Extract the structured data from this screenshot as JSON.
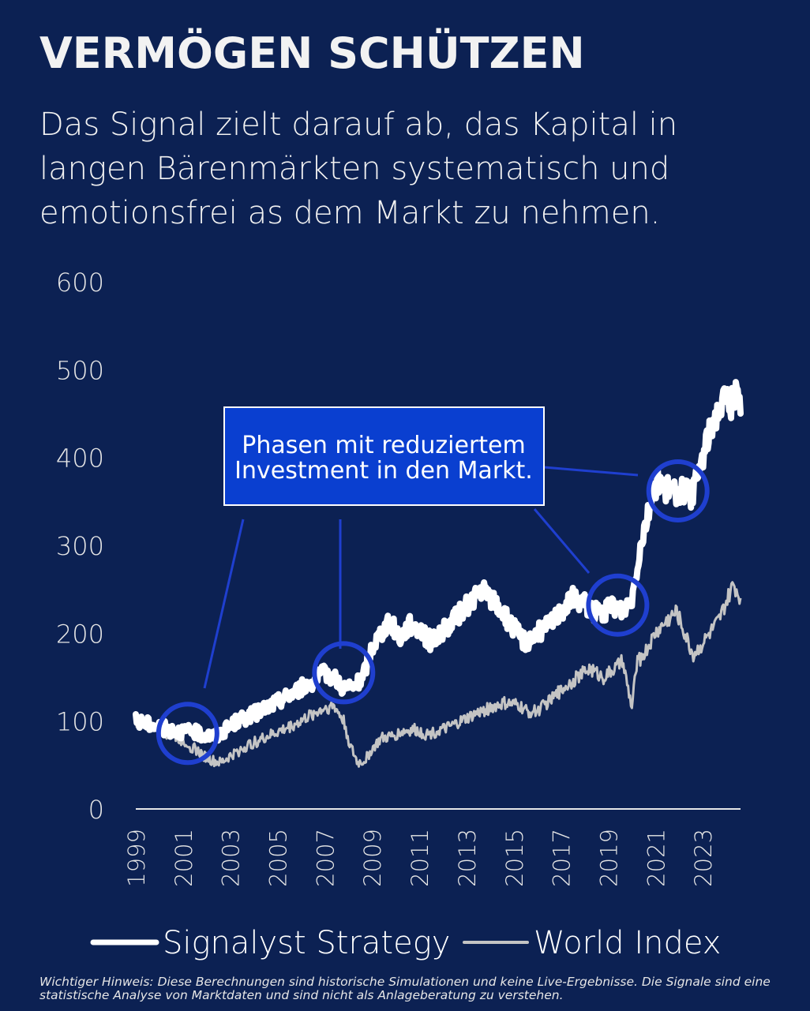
{
  "title": "VERMÖGEN SCHÜTZEN",
  "subtitle": "Das Signal zielt darauf ab, das Kapital in langen Bärenmärkten systematisch und emotionsfrei as dem Markt zu nehmen.",
  "annotation": "Phasen mit reduziertem Investment in den Markt.",
  "annotation_lines": [
    "Phasen mit reduziertem",
    "Investment in den Markt."
  ],
  "disclaimer": "Wichtiger Hinweis: Diese Berechnungen sind historische Simulationen und keine Live-Ergebnisse. Die Signale sind eine statistische Analyse von Marktdaten und sind nicht als Anlageberatung zu verstehen.",
  "colors": {
    "background": "#0c2153",
    "strategy": "#ffffff",
    "index": "#c4c4c4",
    "highlight": "#1f3fcf",
    "annotation_box": "#0a3fd0"
  },
  "chart_data": {
    "type": "line",
    "title": "",
    "xlabel": "",
    "ylabel": "",
    "ylim": [
      0,
      600
    ],
    "xlim": [
      1999,
      2024.6
    ],
    "y_ticks": [
      "0",
      "100",
      "200",
      "300",
      "400",
      "500",
      "600"
    ],
    "x_ticks": [
      "1999",
      "2001",
      "2003",
      "2005",
      "2007",
      "2009",
      "2011",
      "2013",
      "2015",
      "2017",
      "2019",
      "2021",
      "2023"
    ],
    "legend_position": "bottom",
    "grid": false,
    "series": [
      {
        "name": "Signalyst Strategy",
        "color": "#ffffff",
        "x": [
          1999.0,
          1999.5,
          2000.0,
          2000.5,
          2001.0,
          2001.5,
          2002.0,
          2002.4,
          2002.8,
          2003.3,
          2004.0,
          2004.5,
          2005.0,
          2005.5,
          2006.0,
          2006.5,
          2007.0,
          2007.4,
          2007.8,
          2008.2,
          2008.6,
          2009.0,
          2009.5,
          2009.8,
          2010.2,
          2010.6,
          2011.0,
          2011.5,
          2011.9,
          2012.3,
          2012.8,
          2013.3,
          2013.7,
          2014.0,
          2014.5,
          2015.0,
          2015.5,
          2016.0,
          2016.5,
          2017.0,
          2017.5,
          2018.0,
          2018.4,
          2018.8,
          2019.2,
          2019.6,
          2020.0,
          2020.4,
          2020.8,
          2021.1,
          2021.4,
          2021.8,
          2022.2,
          2022.5,
          2022.8,
          2023.1,
          2023.4,
          2023.7,
          2024.0,
          2024.2,
          2024.4,
          2024.6
        ],
        "values": [
          100,
          97,
          93,
          90,
          88,
          87,
          84,
          83,
          90,
          100,
          108,
          115,
          122,
          130,
          138,
          145,
          155,
          150,
          138,
          138,
          148,
          185,
          205,
          212,
          195,
          210,
          205,
          190,
          200,
          210,
          225,
          240,
          248,
          240,
          225,
          205,
          190,
          200,
          210,
          225,
          240,
          235,
          225,
          222,
          232,
          225,
          240,
          305,
          350,
          375,
          365,
          360,
          362,
          355,
          380,
          410,
          440,
          455,
          470,
          460,
          475,
          450
        ]
      },
      {
        "name": "World Index",
        "color": "#c4c4c4",
        "x": [
          1999.0,
          1999.5,
          2000.0,
          2000.5,
          2001.0,
          2001.4,
          2001.8,
          2002.2,
          2002.6,
          2003.0,
          2003.6,
          2004.2,
          2004.8,
          2005.4,
          2006.0,
          2006.5,
          2007.0,
          2007.4,
          2007.8,
          2008.1,
          2008.4,
          2008.7,
          2009.0,
          2009.4,
          2009.8,
          2010.3,
          2010.8,
          2011.3,
          2011.7,
          2012.2,
          2012.8,
          2013.4,
          2014.0,
          2014.6,
          2015.2,
          2015.6,
          2016.0,
          2016.6,
          2017.2,
          2017.8,
          2018.2,
          2018.8,
          2019.3,
          2019.6,
          2020.0,
          2020.2,
          2020.6,
          2021.0,
          2021.5,
          2021.9,
          2022.3,
          2022.6,
          2022.9,
          2023.3,
          2023.7,
          2024.0,
          2024.3,
          2024.6
        ],
        "values": [
          100,
          96,
          90,
          84,
          78,
          70,
          62,
          55,
          52,
          60,
          70,
          78,
          85,
          92,
          100,
          108,
          115,
          117,
          100,
          70,
          52,
          55,
          68,
          80,
          82,
          88,
          90,
          85,
          88,
          92,
          100,
          108,
          115,
          120,
          118,
          110,
          112,
          125,
          140,
          152,
          160,
          150,
          160,
          168,
          115,
          165,
          180,
          200,
          215,
          225,
          195,
          175,
          185,
          200,
          215,
          235,
          255,
          240
        ]
      }
    ]
  }
}
